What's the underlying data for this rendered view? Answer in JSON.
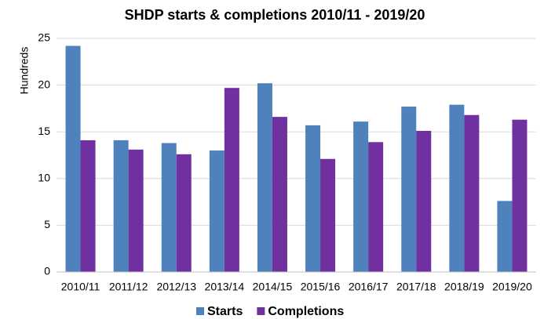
{
  "chart_data": {
    "type": "bar",
    "title": "SHDP starts & completions 2010/11 - 2019/20",
    "y_label": "Hundreds",
    "categories": [
      "2010/11",
      "2011/12",
      "2012/13",
      "2013/14",
      "2014/15",
      "2015/16",
      "2016/17",
      "2017/18",
      "2018/19",
      "2019/20"
    ],
    "series": [
      {
        "name": "Starts",
        "color": "#4f81bd",
        "values": [
          24.2,
          14.1,
          13.8,
          13.0,
          20.2,
          15.7,
          16.1,
          17.7,
          17.9,
          7.6
        ]
      },
      {
        "name": "Completions",
        "color": "#7030a0",
        "values": [
          14.1,
          13.1,
          12.6,
          19.7,
          16.6,
          12.1,
          13.9,
          15.1,
          16.8,
          16.3
        ]
      }
    ],
    "ylim": [
      0,
      25
    ],
    "yticks": [
      0,
      5,
      10,
      15,
      20,
      25
    ],
    "grid": true,
    "legend": "bottom"
  }
}
